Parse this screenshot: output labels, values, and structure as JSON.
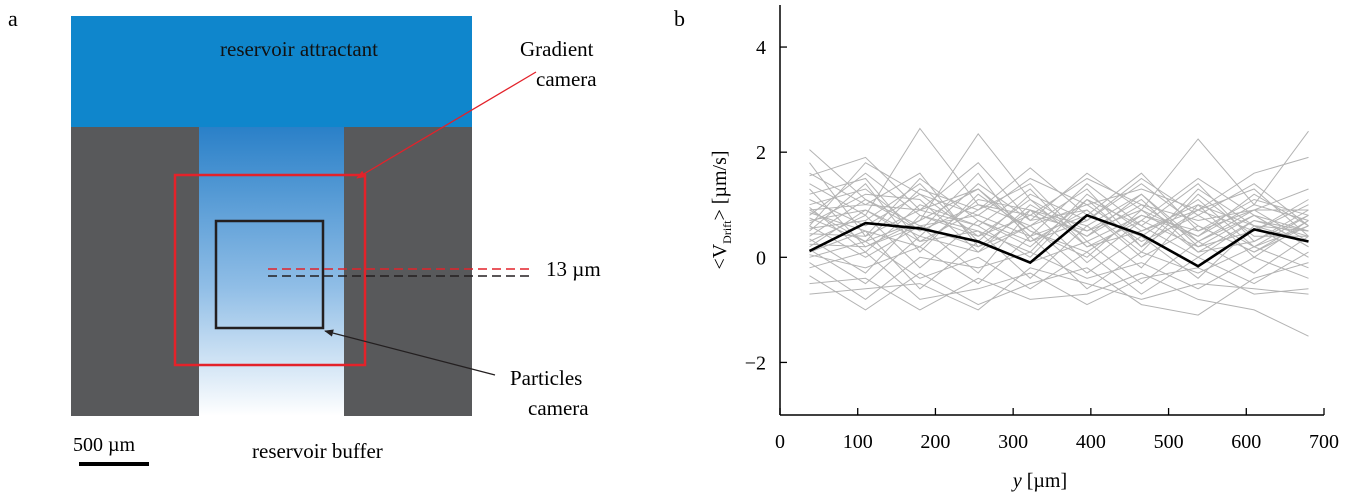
{
  "panel_a": {
    "label": "a",
    "reservoir_top": "reservoir attractant",
    "reservoir_bottom": "reservoir buffer",
    "gradient_camera_line1": "Gradient",
    "gradient_camera_line2": "camera",
    "particles_camera_line1": "Particles",
    "particles_camera_line2": "camera",
    "offset_label": "13 µm",
    "scale_bar_label": "500 µm",
    "colors": {
      "reservoir": "#0f86cc",
      "wall": "#58595b",
      "gradient_camera": "#e3222a",
      "particles_camera": "#231f20"
    }
  },
  "panel_b": {
    "label": "b",
    "chart_data": {
      "type": "line",
      "xlabel_italic": "y",
      "xlabel_unit": " [µm]",
      "ylabel_prefix": "<V",
      "ylabel_sub": "Drift",
      "ylabel_suffix": "> [µm/s]",
      "xlim": [
        0,
        700
      ],
      "ylim": [
        -3,
        4.8
      ],
      "x_ticks": [
        0,
        100,
        200,
        300,
        400,
        500,
        600,
        700
      ],
      "y_ticks": [
        -2,
        0,
        2,
        4
      ],
      "y_tick_labels": [
        "−2",
        "0",
        "2",
        "4"
      ],
      "grid": false,
      "x": [
        38,
        110,
        180,
        255,
        322,
        395,
        465,
        538,
        610,
        680
      ],
      "mean_series": {
        "color": "#000000",
        "values": [
          0.12,
          0.65,
          0.55,
          0.3,
          -0.1,
          0.8,
          0.43,
          -0.17,
          0.53,
          0.3
        ]
      },
      "individual_series_color": "#b3b3b3",
      "individual_series": [
        [
          2.05,
          1.1,
          0.6,
          0.2,
          0.9,
          0.4,
          1.2,
          0.3,
          0.8,
          0.5
        ],
        [
          1.8,
          0.4,
          1.5,
          0.7,
          0.2,
          1.1,
          0.6,
          1.4,
          0.3,
          0.9
        ],
        [
          1.55,
          1.9,
          0.9,
          1.3,
          0.5,
          0.1,
          0.8,
          0.4,
          1.2,
          0.6
        ],
        [
          1.4,
          0.8,
          2.45,
          1.0,
          0.6,
          1.3,
          0.2,
          0.9,
          0.5,
          1.1
        ],
        [
          1.3,
          0.2,
          0.7,
          2.35,
          1.1,
          0.5,
          0.9,
          0.1,
          0.7,
          0.4
        ],
        [
          1.2,
          1.5,
          0.3,
          0.9,
          1.7,
          0.8,
          0.4,
          1.1,
          0.2,
          0.8
        ],
        [
          1.1,
          0.6,
          1.2,
          0.4,
          0.8,
          1.5,
          1.0,
          0.3,
          0.9,
          0.3
        ],
        [
          1.0,
          1.3,
          0.5,
          1.6,
          0.3,
          0.7,
          1.4,
          0.6,
          0.1,
          0.7
        ],
        [
          0.95,
          0.1,
          1.0,
          0.6,
          1.3,
          0.2,
          0.7,
          1.5,
          0.8,
          0.2
        ],
        [
          0.9,
          1.0,
          1.6,
          0.2,
          0.6,
          1.0,
          0.3,
          0.8,
          1.4,
          0.6
        ],
        [
          0.85,
          0.5,
          0.2,
          1.1,
          0.9,
          0.6,
          1.2,
          0.2,
          0.5,
          1.0
        ],
        [
          0.8,
          1.6,
          0.8,
          0.5,
          0.1,
          1.2,
          0.5,
          1.0,
          0.6,
          0.5
        ],
        [
          0.75,
          0.3,
          1.3,
          0.9,
          1.4,
          0.3,
          0.8,
          0.5,
          1.1,
          0.8
        ],
        [
          0.7,
          0.9,
          0.4,
          1.4,
          0.7,
          0.9,
          0.1,
          1.2,
          0.4,
          0.4
        ],
        [
          0.65,
          1.2,
          1.1,
          0.1,
          1.0,
          0.4,
          1.0,
          0.7,
          0.9,
          0.9
        ],
        [
          0.6,
          0.0,
          0.6,
          0.8,
          0.4,
          1.4,
          0.6,
          0.0,
          0.7,
          0.5
        ],
        [
          0.55,
          0.7,
          1.4,
          0.3,
          1.2,
          0.7,
          1.5,
          0.8,
          0.2,
          0.6
        ],
        [
          0.5,
          1.4,
          0.1,
          1.2,
          0.5,
          0.0,
          0.9,
          0.4,
          1.0,
          0.7
        ],
        [
          0.45,
          0.4,
          0.9,
          0.6,
          0.0,
          1.1,
          0.2,
          1.3,
          0.6,
          0.3
        ],
        [
          0.4,
          1.1,
          0.5,
          1.0,
          0.8,
          0.5,
          1.1,
          0.1,
          0.3,
          0.8
        ],
        [
          0.35,
          -0.3,
          0.8,
          0.4,
          1.1,
          0.2,
          0.5,
          0.9,
          1.3,
          0.4
        ],
        [
          0.3,
          0.8,
          -0.2,
          0.7,
          0.3,
          0.9,
          0.0,
          0.6,
          0.1,
          0.6
        ],
        [
          0.25,
          0.2,
          0.6,
          -0.3,
          0.9,
          -0.1,
          0.7,
          0.2,
          0.8,
          0.2
        ],
        [
          0.2,
          0.9,
          0.3,
          0.5,
          -0.4,
          0.6,
          -0.2,
          1.0,
          0.0,
          0.7
        ],
        [
          0.15,
          -0.5,
          0.4,
          0.1,
          0.6,
          -0.3,
          0.4,
          -0.4,
          0.6,
          0.0
        ],
        [
          0.1,
          0.5,
          -0.6,
          0.3,
          -0.1,
          0.3,
          -0.5,
          0.3,
          -0.3,
          0.4
        ],
        [
          0.05,
          -0.2,
          0.2,
          -0.5,
          0.4,
          -0.6,
          0.1,
          -0.3,
          0.2,
          -0.2
        ],
        [
          0.0,
          0.3,
          -0.4,
          0.0,
          -0.6,
          0.1,
          -0.7,
          0.0,
          -0.5,
          0.1
        ],
        [
          -0.1,
          -0.8,
          0.0,
          -0.2,
          0.1,
          -0.4,
          -0.1,
          -0.6,
          0.0,
          -0.4
        ],
        [
          -0.2,
          0.1,
          -0.8,
          -0.6,
          -0.3,
          -0.9,
          -0.4,
          -0.2,
          -0.7,
          -0.6
        ],
        [
          -0.35,
          -1.0,
          -0.3,
          -0.9,
          -0.5,
          -0.2,
          -0.9,
          -1.1,
          -0.4,
          -0.1
        ],
        [
          -0.5,
          -0.4,
          -1.0,
          -0.4,
          -0.8,
          -0.7,
          -0.3,
          -0.8,
          -1.0,
          -1.5
        ],
        [
          -0.7,
          -0.6,
          -0.5,
          -1.0,
          -0.2,
          -0.5,
          -0.8,
          -0.5,
          -0.6,
          -0.7
        ],
        [
          1.6,
          1.0,
          0.9,
          1.8,
          0.7,
          1.6,
          0.9,
          2.25,
          1.0,
          2.4
        ],
        [
          0.6,
          1.8,
          1.2,
          0.8,
          1.5,
          1.0,
          1.3,
          0.9,
          1.6,
          1.9
        ],
        [
          0.9,
          0.3,
          0.7,
          1.3,
          0.4,
          0.8,
          1.6,
          0.5,
          0.9,
          1.3
        ]
      ]
    }
  }
}
